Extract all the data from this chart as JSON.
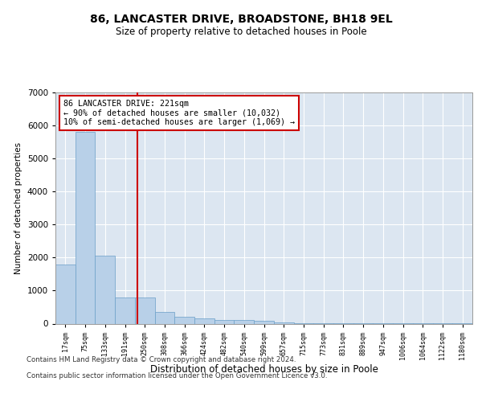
{
  "title": "86, LANCASTER DRIVE, BROADSTONE, BH18 9EL",
  "subtitle": "Size of property relative to detached houses in Poole",
  "xlabel": "Distribution of detached houses by size in Poole",
  "ylabel": "Number of detached properties",
  "bin_labels": [
    "17sqm",
    "75sqm",
    "133sqm",
    "191sqm",
    "250sqm",
    "308sqm",
    "366sqm",
    "424sqm",
    "482sqm",
    "540sqm",
    "599sqm",
    "657sqm",
    "715sqm",
    "773sqm",
    "831sqm",
    "889sqm",
    "947sqm",
    "1006sqm",
    "1064sqm",
    "1122sqm",
    "1180sqm"
  ],
  "bar_values": [
    1800,
    5800,
    2050,
    800,
    800,
    350,
    200,
    150,
    120,
    120,
    80,
    30,
    15,
    10,
    8,
    5,
    3,
    2,
    2,
    1,
    1
  ],
  "bar_color": "#b8d0e8",
  "bar_edgecolor": "#6a9fc8",
  "red_line_x": 3.62,
  "annotation_text": "86 LANCASTER DRIVE: 221sqm\n← 90% of detached houses are smaller (10,032)\n10% of semi-detached houses are larger (1,069) →",
  "annotation_box_color": "#ffffff",
  "annotation_box_edgecolor": "#cc0000",
  "red_line_color": "#cc0000",
  "ylim": [
    0,
    7000
  ],
  "yticks": [
    0,
    1000,
    2000,
    3000,
    4000,
    5000,
    6000,
    7000
  ],
  "background_color": "#dce6f1",
  "grid_color": "#ffffff",
  "footer_line1": "Contains HM Land Registry data © Crown copyright and database right 2024.",
  "footer_line2": "Contains public sector information licensed under the Open Government Licence v3.0.",
  "title_fontsize": 10,
  "subtitle_fontsize": 8.5
}
